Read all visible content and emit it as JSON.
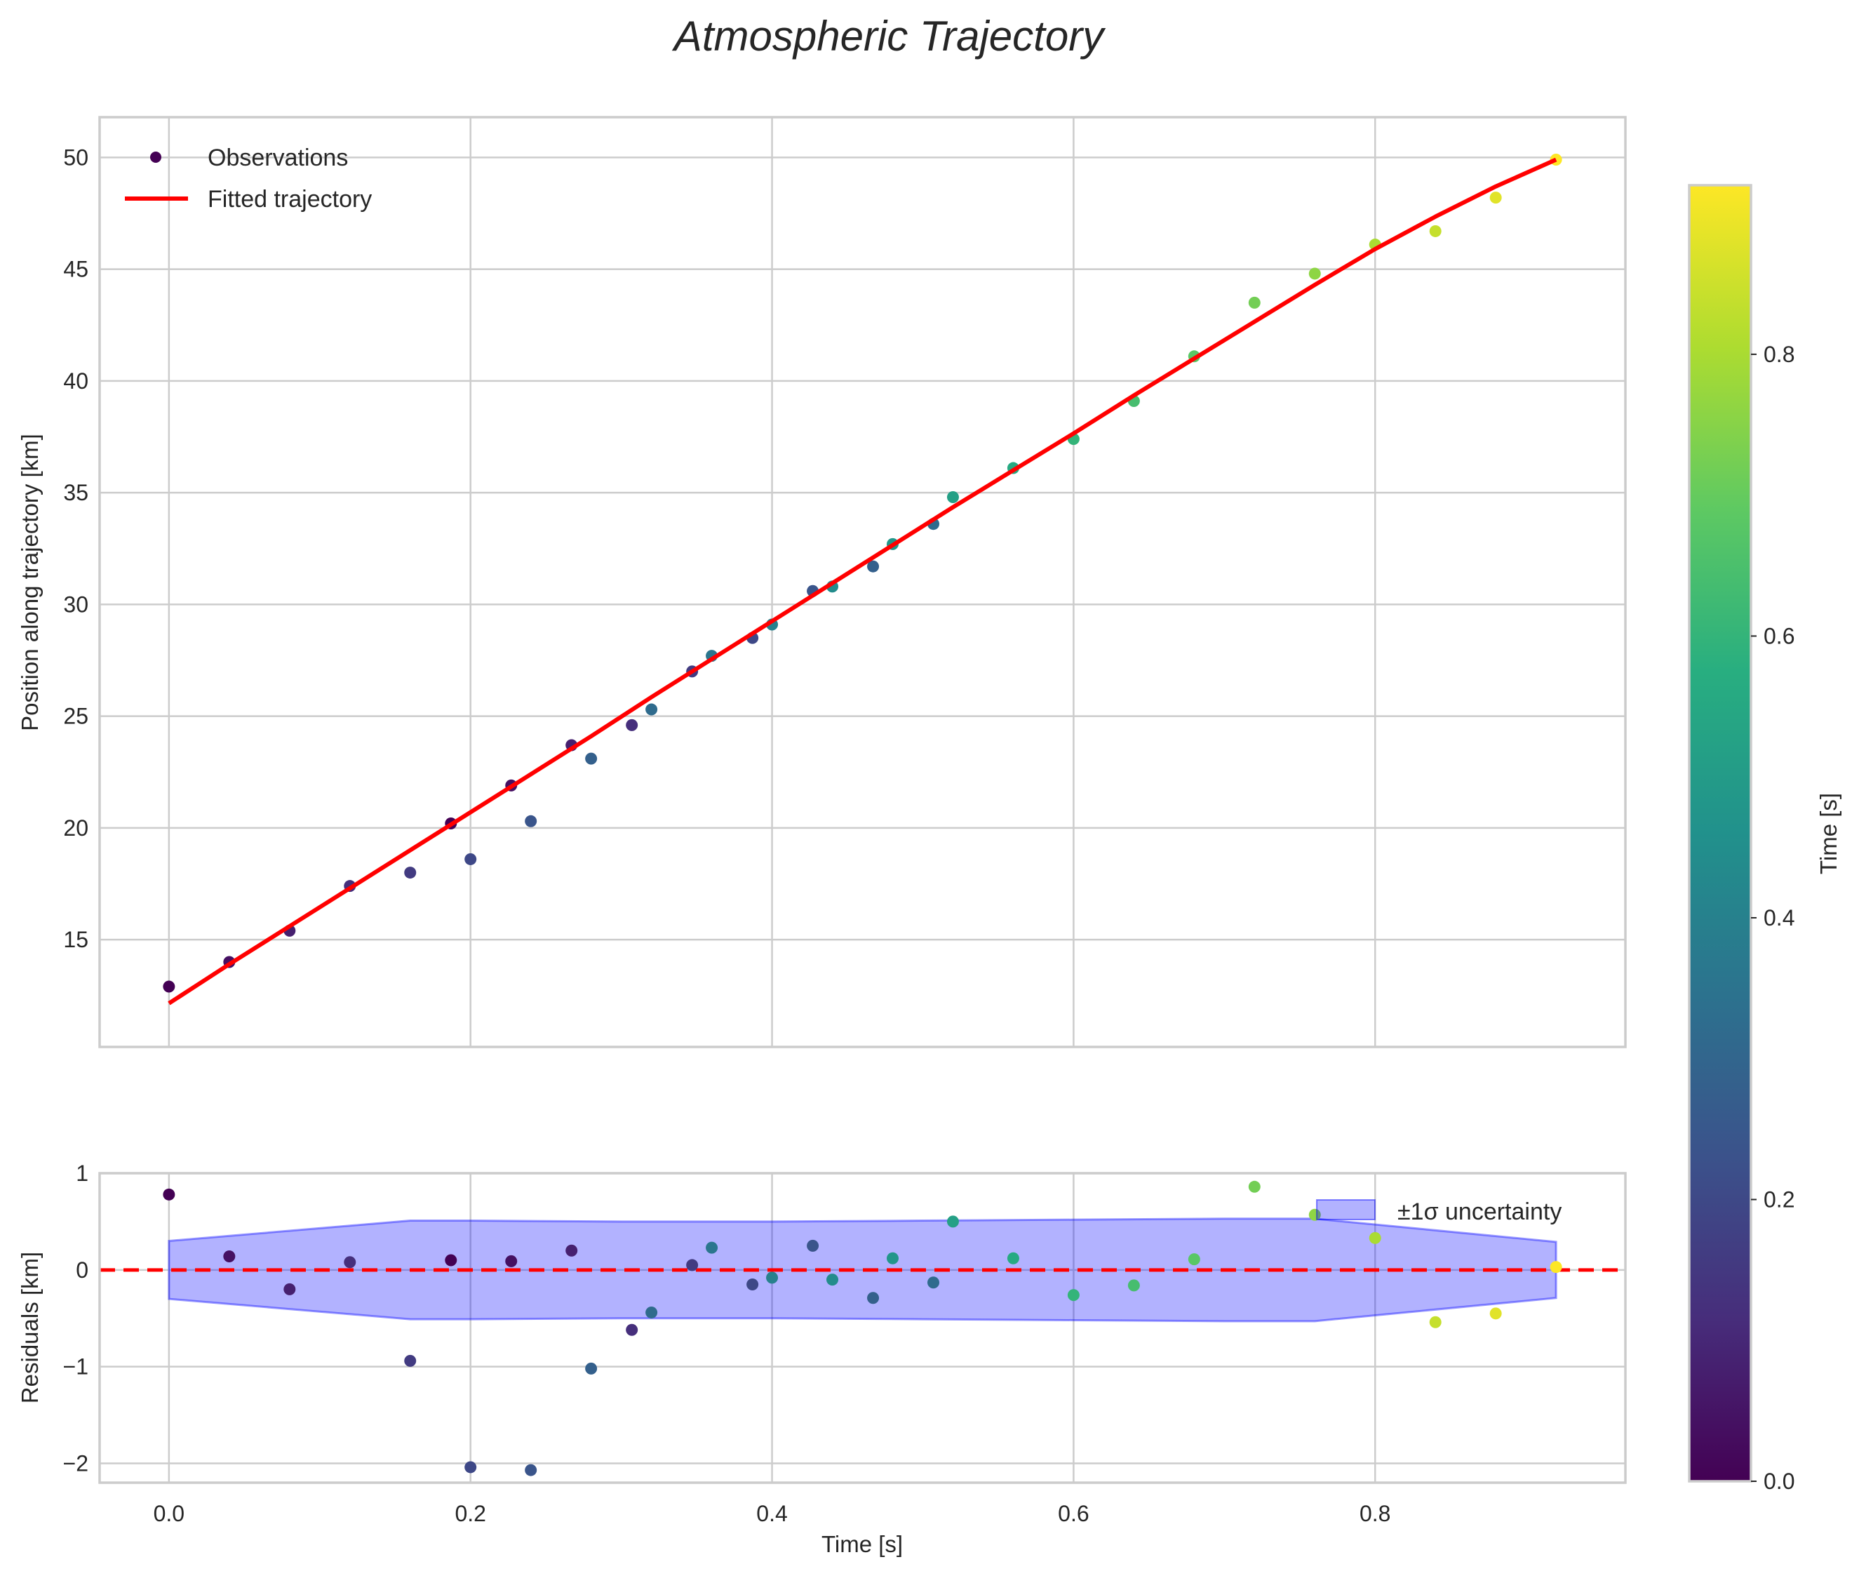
{
  "chart_data": [
    {
      "type": "scatter",
      "title": "Atmospheric Trajectory",
      "xlabel": "",
      "ylabel": "Position along trajectory [km]",
      "xlim": [
        -0.046,
        0.966
      ],
      "ylim": [
        10.2,
        51.8
      ],
      "x_ticks": [
        "0.0",
        "0.2",
        "0.4",
        "0.6",
        "0.8"
      ],
      "x_tick_values": [
        0,
        0.2,
        0.4,
        0.6,
        0.8
      ],
      "y_ticks": [
        "15",
        "20",
        "25",
        "30",
        "35",
        "40",
        "45",
        "50"
      ],
      "y_tick_values": [
        15,
        20,
        25,
        30,
        35,
        40,
        45,
        50
      ],
      "grid": true,
      "legend": {
        "placement": "top-left",
        "entries": [
          "Observations",
          "Fitted trajectory"
        ]
      },
      "observations": {
        "name": "Observations",
        "t": [
          0,
          0.04,
          0.08,
          0.12,
          0.16,
          0.187,
          0.2,
          0.227,
          0.24,
          0.267,
          0.28,
          0.307,
          0.32,
          0.347,
          0.36,
          0.387,
          0.4,
          0.427,
          0.44,
          0.467,
          0.48,
          0.507,
          0.52,
          0.56,
          0.6,
          0.64,
          0.68,
          0.72,
          0.76,
          0.8,
          0.84,
          0.88,
          0.92
        ],
        "position": [
          12.9,
          14.0,
          15.4,
          17.4,
          18.0,
          20.2,
          18.6,
          21.9,
          20.3,
          23.7,
          23.1,
          24.6,
          25.3,
          27.0,
          27.7,
          28.5,
          29.1,
          30.6,
          30.8,
          31.7,
          32.7,
          33.6,
          34.8,
          36.1,
          37.4,
          39.1,
          41.1,
          43.5,
          44.8,
          46.1,
          46.7,
          48.2,
          49.9
        ],
        "color_value": [
          0,
          0.04,
          0.08,
          0.12,
          0.16,
          0.0,
          0.2,
          0.04,
          0.24,
          0.08,
          0.28,
          0.12,
          0.32,
          0.16,
          0.36,
          0.2,
          0.4,
          0.24,
          0.44,
          0.28,
          0.48,
          0.32,
          0.52,
          0.56,
          0.6,
          0.64,
          0.68,
          0.72,
          0.76,
          0.8,
          0.84,
          0.88,
          0.92
        ]
      },
      "fitted": {
        "name": "Fitted trajectory",
        "color": "#ff0000",
        "t": [
          0,
          0.04,
          0.08,
          0.12,
          0.16,
          0.2,
          0.24,
          0.28,
          0.32,
          0.36,
          0.4,
          0.44,
          0.48,
          0.52,
          0.56,
          0.6,
          0.64,
          0.68,
          0.72,
          0.76,
          0.8,
          0.84,
          0.88,
          0.92
        ],
        "position": [
          12.15,
          13.9,
          15.6,
          17.3,
          19.0,
          20.7,
          22.4,
          24.1,
          25.85,
          27.55,
          29.25,
          30.95,
          32.65,
          34.35,
          36.0,
          37.65,
          39.35,
          41.0,
          42.65,
          44.3,
          45.9,
          47.35,
          48.7,
          49.9
        ]
      }
    },
    {
      "type": "scatter",
      "xlabel": "Time [s]",
      "ylabel": "Residuals [km]",
      "xlim": [
        -0.046,
        0.966
      ],
      "ylim": [
        -2.2,
        1.0
      ],
      "x_ticks": [
        "0.0",
        "0.2",
        "0.4",
        "0.6",
        "0.8"
      ],
      "x_tick_values": [
        0,
        0.2,
        0.4,
        0.6,
        0.8
      ],
      "y_ticks": [
        "1",
        "0",
        "−1",
        "−2"
      ],
      "y_tick_values": [
        1,
        0,
        -1,
        -2
      ],
      "grid": true,
      "legend": {
        "placement": "top-right",
        "entries": [
          "±1σ uncertainty"
        ]
      },
      "residuals": [
        0.78,
        0.14,
        -0.2,
        0.08,
        -0.94,
        0.1,
        -2.04,
        0.09,
        -2.07,
        0.2,
        -1.02,
        -0.62,
        -0.44,
        0.05,
        0.23,
        -0.15,
        -0.08,
        0.25,
        -0.1,
        -0.29,
        0.12,
        -0.13,
        0.5,
        0.12,
        -0.26,
        -0.16,
        0.11,
        0.86,
        0.57,
        0.33,
        -0.54,
        -0.45,
        0.03
      ],
      "uncertainty_band": {
        "name": "±1σ uncertainty",
        "color": "#0000ff",
        "t": [
          0,
          0.16,
          0.2,
          0.3,
          0.4,
          0.5,
          0.6,
          0.7,
          0.76,
          0.92
        ],
        "sigma": [
          0.3,
          0.51,
          0.51,
          0.5,
          0.5,
          0.51,
          0.52,
          0.53,
          0.53,
          0.29
        ]
      },
      "zero_line": {
        "value": 0,
        "color": "#ff0000",
        "style": "dashed"
      }
    }
  ],
  "colorbar": {
    "label": "Time [s]",
    "range": [
      0,
      0.92
    ],
    "ticks": [
      "0.0",
      "0.2",
      "0.4",
      "0.6",
      "0.8"
    ],
    "tick_values": [
      0,
      0.2,
      0.4,
      0.6,
      0.8
    ],
    "colormap": "viridis"
  }
}
